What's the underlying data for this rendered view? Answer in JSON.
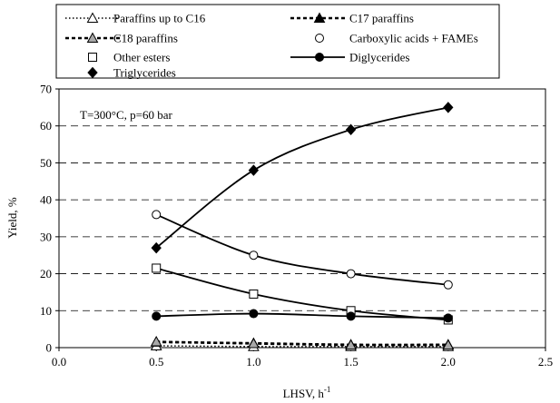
{
  "chart_data": {
    "type": "scatter",
    "annotation": "T=300°C, p=60 bar",
    "xlabel": "LHSV, h",
    "xlabel_sup": "-1",
    "ylabel": "Yield, %",
    "xlim": [
      0.0,
      2.5
    ],
    "ylim": [
      0,
      70
    ],
    "x_ticks": [
      "0.0",
      "0.5",
      "1.0",
      "1.5",
      "2.0",
      "2.5"
    ],
    "y_ticks": [
      "0",
      "10",
      "20",
      "30",
      "40",
      "50",
      "60",
      "70"
    ],
    "grid": "horizontal dashed",
    "legend_position": "top",
    "series": [
      {
        "name": "Paraffins up to C16",
        "marker": "triangle-open",
        "line": "dotted",
        "x": [
          0.5,
          1.0,
          1.5,
          2.0
        ],
        "y": [
          0.5,
          0.3,
          0.3,
          0.3
        ]
      },
      {
        "name": "C17 paraffins",
        "marker": "triangle-filled",
        "line": "dashed",
        "x": [
          0.5,
          1.0,
          1.5,
          2.0
        ],
        "y": [
          1.5,
          1.2,
          0.8,
          0.8
        ]
      },
      {
        "name": "C18 paraffins",
        "marker": "triangle-grey",
        "line": "dashed",
        "x": [
          0.5,
          1.0,
          1.5,
          2.0
        ],
        "y": [
          1.6,
          1.1,
          0.7,
          0.7
        ]
      },
      {
        "name": "Carboxylic acids + FAMEs",
        "marker": "circle-open",
        "line": "solid",
        "x": [
          0.5,
          1.0,
          1.5,
          2.0
        ],
        "y": [
          36,
          25,
          20,
          17
        ]
      },
      {
        "name": "Other esters",
        "marker": "square-open",
        "line": "solid",
        "x": [
          0.5,
          1.0,
          1.5,
          2.0
        ],
        "y": [
          21.5,
          14.5,
          10,
          7.5
        ]
      },
      {
        "name": "Diglycerides",
        "marker": "circle-filled",
        "line": "solid",
        "x": [
          0.5,
          1.0,
          1.5,
          2.0
        ],
        "y": [
          8.5,
          9.2,
          8.5,
          8
        ]
      },
      {
        "name": "Triglycerides",
        "marker": "diamond-filled",
        "line": "solid",
        "x": [
          0.5,
          1.0,
          1.5,
          2.0
        ],
        "y": [
          27,
          48,
          59,
          65
        ]
      }
    ]
  }
}
